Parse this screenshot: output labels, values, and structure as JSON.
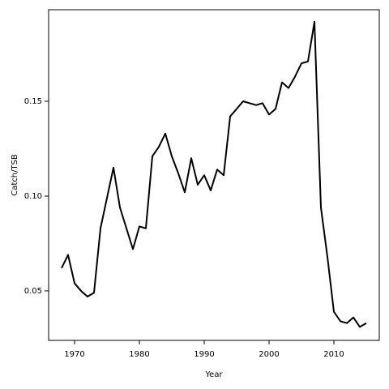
{
  "chart_data": {
    "type": "line",
    "x_label": "Year",
    "y_label": "Catch/TSB",
    "x": [
      1968,
      1969,
      1970,
      1971,
      1972,
      1973,
      1974,
      1975,
      1976,
      1977,
      1978,
      1979,
      1980,
      1981,
      1982,
      1983,
      1984,
      1985,
      1986,
      1987,
      1988,
      1989,
      1990,
      1991,
      1992,
      1993,
      1994,
      1995,
      1996,
      1997,
      1998,
      1999,
      2000,
      2001,
      2002,
      2003,
      2004,
      2005,
      2006,
      2007,
      2008,
      2009,
      2010,
      2011,
      2012,
      2013,
      2014,
      2015
    ],
    "series": [
      {
        "color": "#000000",
        "values": [
          0.062,
          0.069,
          0.054,
          0.05,
          0.047,
          0.049,
          0.083,
          0.099,
          0.115,
          0.094,
          0.083,
          0.072,
          0.084,
          0.083,
          0.121,
          0.126,
          0.133,
          0.121,
          0.112,
          0.102,
          0.12,
          0.106,
          0.111,
          0.103,
          0.114,
          0.111,
          0.142,
          0.146,
          0.15,
          0.149,
          0.148,
          0.149,
          0.143,
          0.146,
          0.16,
          0.157,
          0.163,
          0.17,
          0.171,
          0.192,
          0.094,
          0.068,
          0.039,
          0.034,
          0.033,
          0.036,
          0.031,
          0.033
        ]
      }
    ],
    "xlim": [
      1966,
      2017
    ],
    "ylim": [
      0.0239,
      0.1983
    ],
    "xticks": [
      1970,
      1980,
      1990,
      2000,
      2010
    ],
    "yticks": [
      0.05,
      {
        "value": 0.1,
        "label": "0.10"
      },
      0.15
    ]
  }
}
